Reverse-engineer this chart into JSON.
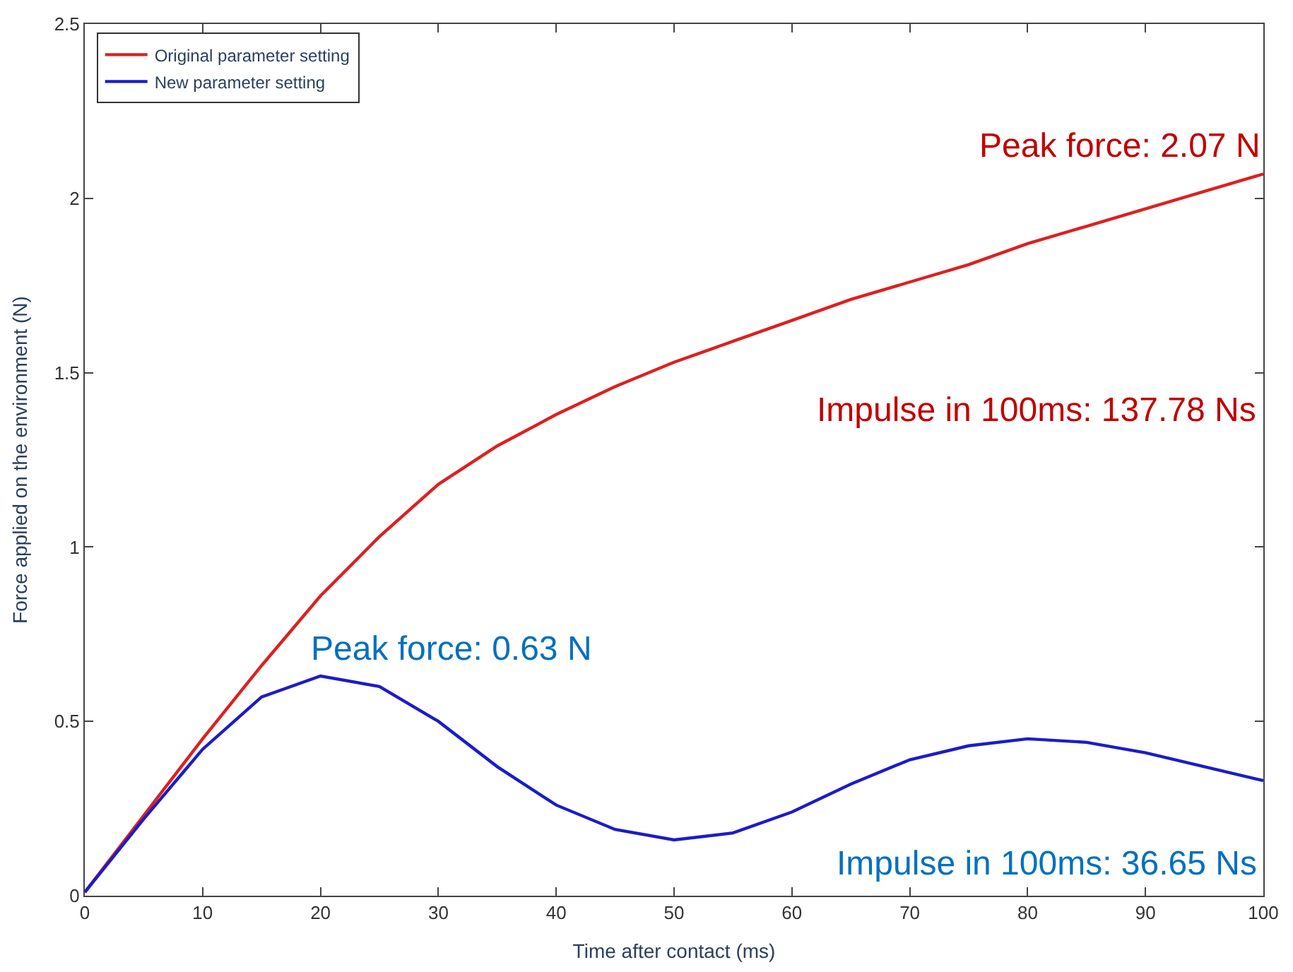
{
  "chart_data": {
    "type": "line",
    "xlabel": "Time after contact (ms)",
    "ylabel": "Force applied on the environment (N)",
    "x": [
      0,
      5,
      10,
      15,
      20,
      25,
      30,
      35,
      40,
      45,
      50,
      55,
      60,
      65,
      70,
      75,
      80,
      85,
      90,
      95,
      100
    ],
    "series": [
      {
        "name": "Original parameter setting",
        "color": "#dd2020",
        "values": [
          0.01,
          0.23,
          0.45,
          0.66,
          0.86,
          1.03,
          1.18,
          1.29,
          1.38,
          1.46,
          1.53,
          1.59,
          1.65,
          1.71,
          1.76,
          1.81,
          1.87,
          1.92,
          1.97,
          2.02,
          2.07
        ]
      },
      {
        "name": "New parameter setting",
        "color": "#1c1cc8",
        "values": [
          0.01,
          0.22,
          0.42,
          0.57,
          0.63,
          0.6,
          0.5,
          0.37,
          0.26,
          0.19,
          0.16,
          0.18,
          0.24,
          0.32,
          0.39,
          0.43,
          0.45,
          0.44,
          0.41,
          0.37,
          0.33
        ]
      }
    ],
    "annotations": [
      {
        "text": "Peak force: 2.07 N",
        "x": 100,
        "y": 2.07
      },
      "Impulse in 100ms: 137.78 Ns",
      {
        "text": "Peak force: 0.63 N",
        "x": 19,
        "y": 0.63
      },
      "Impulse in 100ms: 36.65 Ns"
    ],
    "xlim": [
      0,
      100
    ],
    "xticks": [
      0,
      10,
      20,
      30,
      40,
      50,
      60,
      70,
      80,
      90,
      100
    ],
    "ylim": [
      0,
      2.5
    ],
    "yticks": [
      0,
      0.5,
      1,
      1.5,
      2,
      2.5
    ],
    "legend": "top left",
    "line_style": "solid",
    "marker": "none"
  }
}
